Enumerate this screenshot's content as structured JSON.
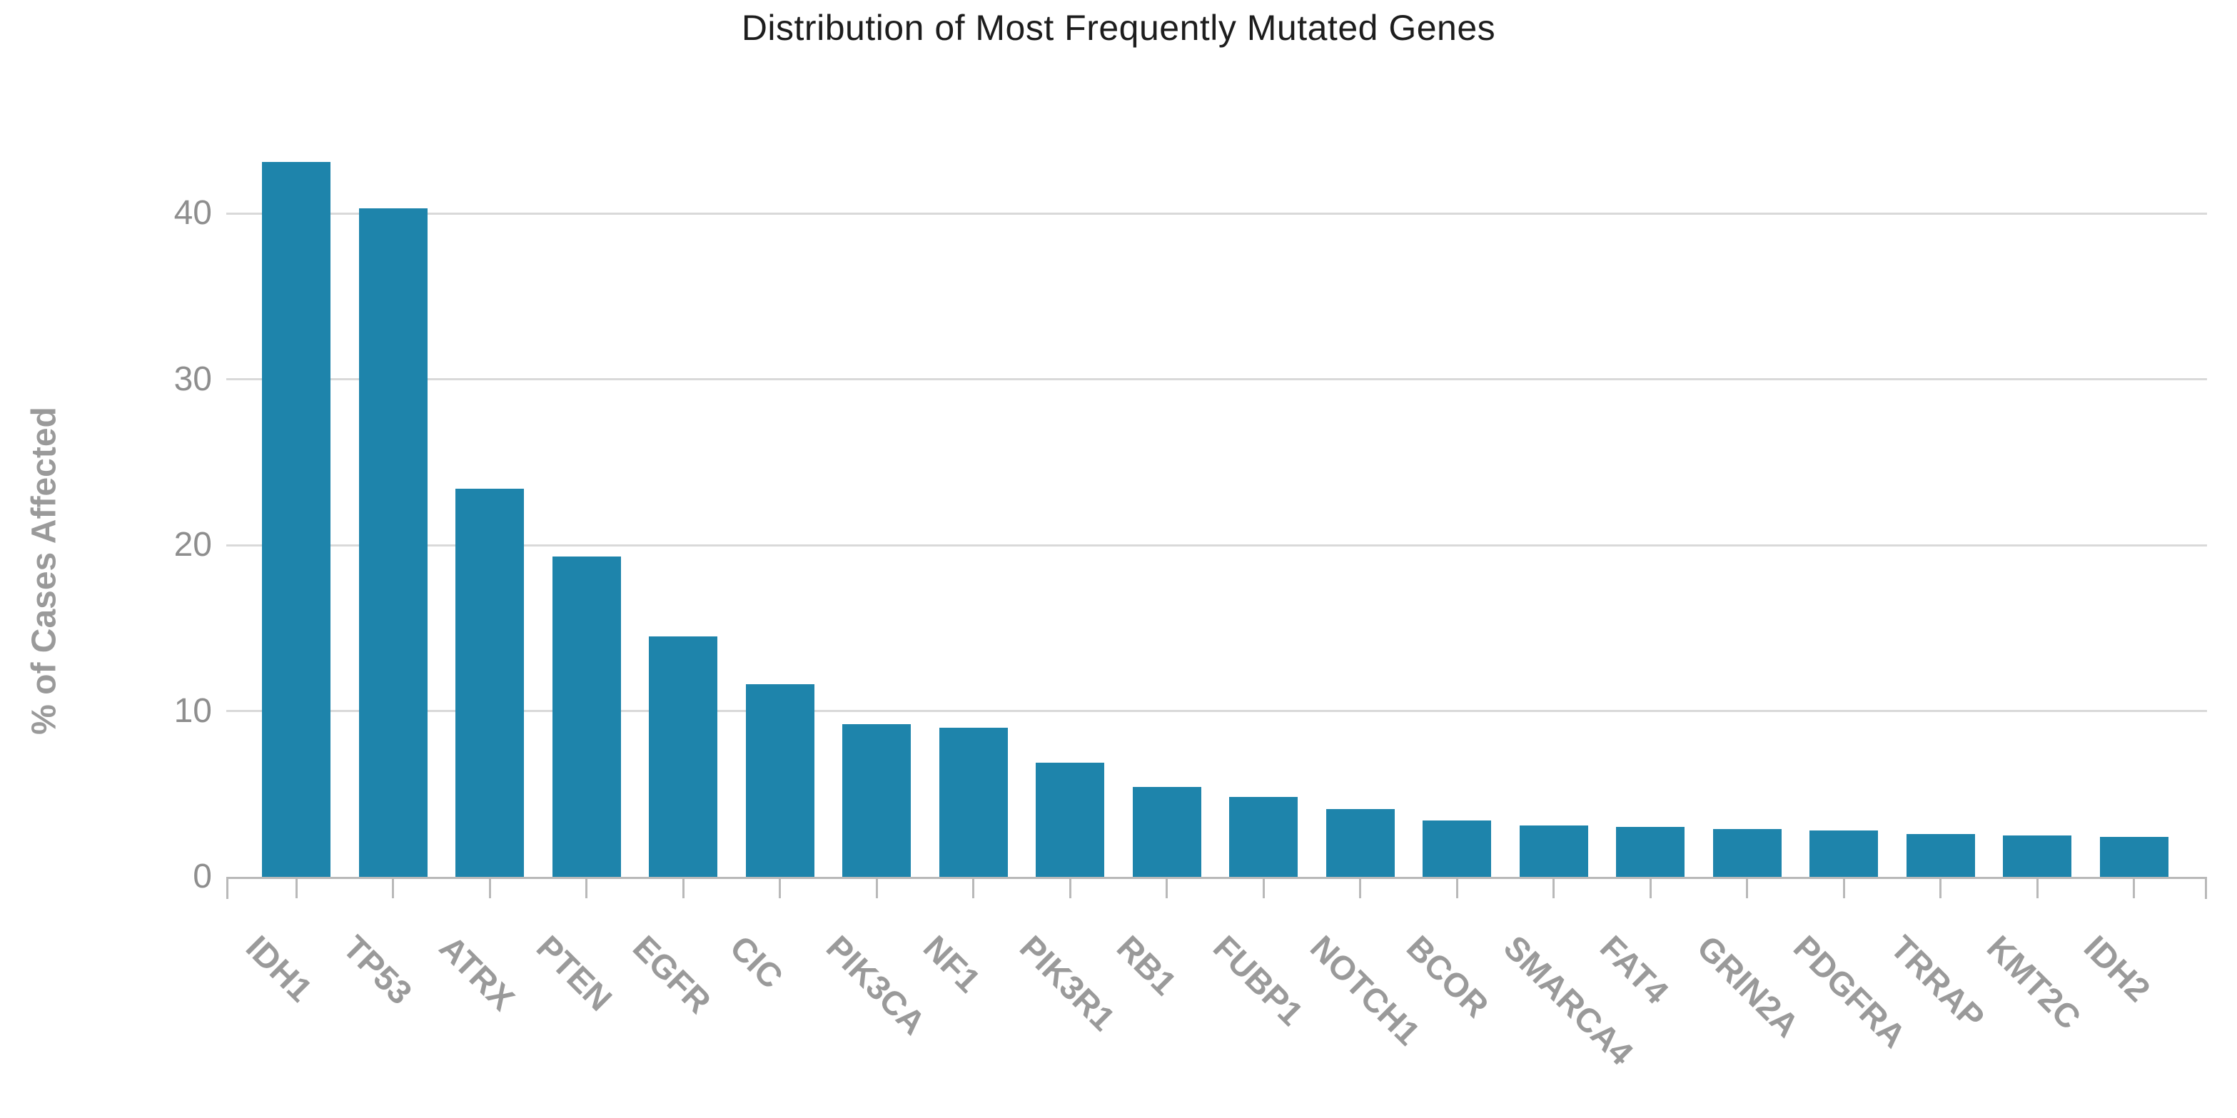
{
  "chart_data": {
    "type": "bar",
    "title": "Distribution of Most Frequently Mutated Genes",
    "xlabel": "",
    "ylabel": "% of Cases Affected",
    "categories": [
      "IDH1",
      "TP53",
      "ATRX",
      "PTEN",
      "EGFR",
      "CIC",
      "PIK3CA",
      "NF1",
      "PIK3R1",
      "RB1",
      "FUBP1",
      "NOTCH1",
      "BCOR",
      "SMARCA4",
      "FAT4",
      "GRIN2A",
      "PDGFRA",
      "TRRAP",
      "KMT2C",
      "IDH2"
    ],
    "values": [
      43.1,
      40.3,
      23.4,
      19.3,
      14.5,
      11.6,
      9.2,
      9.0,
      6.9,
      5.4,
      4.8,
      4.1,
      3.4,
      3.1,
      3.0,
      2.9,
      2.8,
      2.6,
      2.5,
      2.4
    ],
    "ylim": [
      0,
      45
    ],
    "yticks": [
      0,
      10,
      20,
      30,
      40
    ],
    "grid": "horizontal",
    "legend": "none",
    "bar_color": "#1e84ab",
    "grid_color": "#d9d9d9",
    "axis_color": "#b9b9b9",
    "y_tick_label_color": "#8e8e8e",
    "category_label_color": "#9a9a9a",
    "title_color": "#1d1d1d"
  }
}
